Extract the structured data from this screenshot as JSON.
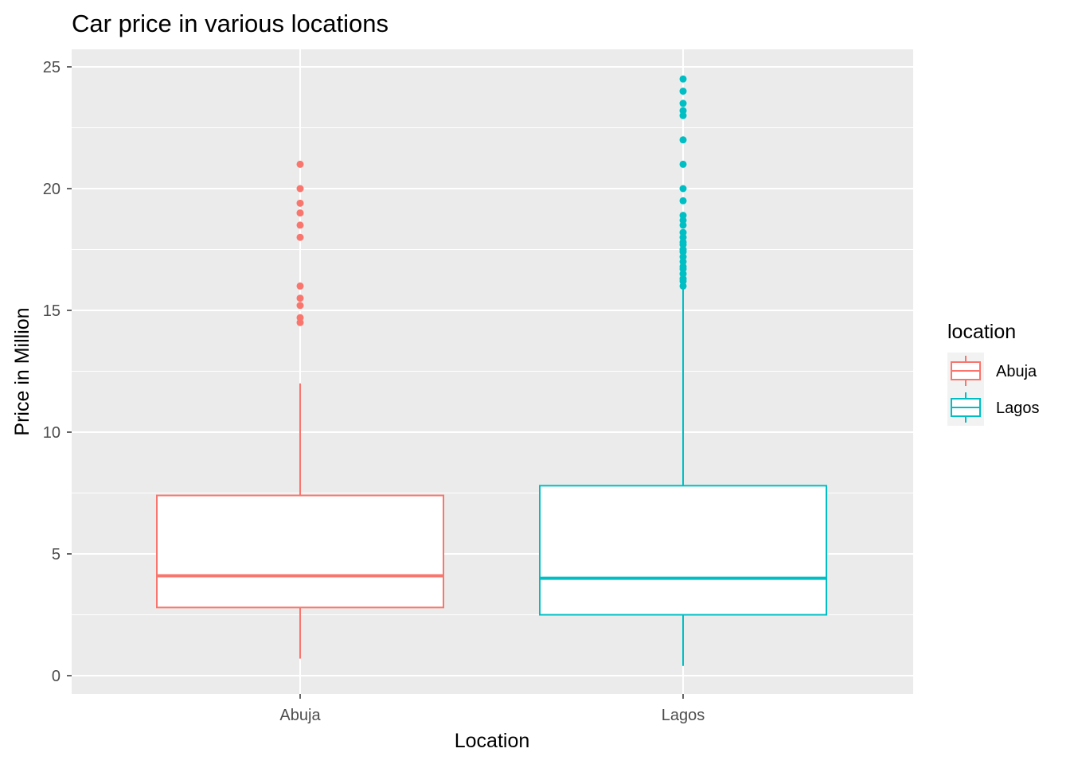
{
  "chart_data": {
    "type": "boxplot",
    "title": "Car price in various locations",
    "xlabel": "Location",
    "ylabel": "Price in Million",
    "ylim": [
      -0.8,
      25.8
    ],
    "yticks": [
      0,
      5,
      10,
      15,
      20,
      25
    ],
    "categories": [
      "Abuja",
      "Lagos"
    ],
    "grid": true,
    "legend": {
      "title": "location",
      "position": "right",
      "entries": [
        "Abuja",
        "Lagos"
      ]
    },
    "colors": {
      "Abuja": "#f8766d",
      "Lagos": "#00bfc4",
      "panel": "#ebebeb",
      "grid": "#ffffff"
    },
    "boxes": [
      {
        "name": "Abuja",
        "whisker_low": 0.7,
        "q1": 2.8,
        "median": 4.1,
        "q3": 7.4,
        "whisker_high": 12.0,
        "outliers": [
          14.5,
          14.7,
          15.2,
          15.5,
          16.0,
          18.0,
          18.5,
          19.0,
          19.4,
          20.0,
          21.0
        ]
      },
      {
        "name": "Lagos",
        "whisker_low": 0.4,
        "q1": 2.5,
        "median": 4.0,
        "q3": 7.8,
        "whisker_high": 15.9,
        "outliers": [
          16.0,
          16.2,
          16.3,
          16.5,
          16.7,
          16.8,
          17.0,
          17.2,
          17.4,
          17.5,
          17.7,
          17.8,
          18.0,
          18.2,
          18.5,
          18.7,
          18.9,
          19.5,
          20.0,
          21.0,
          22.0,
          23.0,
          23.2,
          23.5,
          24.0,
          24.5
        ]
      }
    ]
  }
}
